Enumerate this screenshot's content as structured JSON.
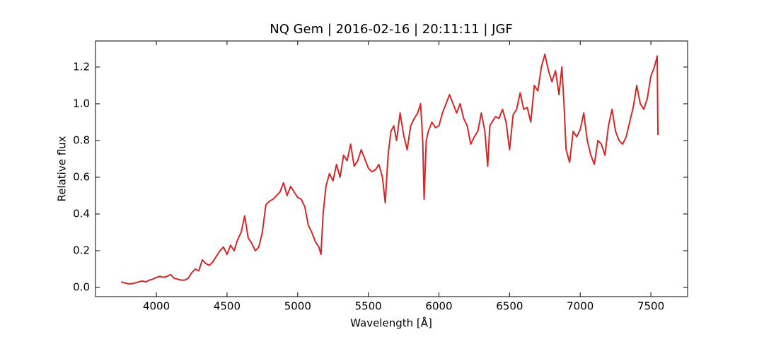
{
  "chart_data": {
    "type": "line",
    "title": "NQ Gem | 2016-02-16 | 20:11:11 | JGF",
    "x_label": "Wavelength [Å]",
    "y_label": "Relative flux",
    "xlim": [
      3569,
      7760
    ],
    "ylim": [
      -0.05,
      1.342
    ],
    "xticks": [
      4000,
      4500,
      5000,
      5500,
      6000,
      6500,
      7000,
      7500
    ],
    "yticks": [
      {
        "value": 0,
        "label": "0.0"
      },
      {
        "value": 0.2,
        "label": "0.2"
      },
      {
        "value": 0.4,
        "label": "0.4"
      },
      {
        "value": 0.6,
        "label": "0.6"
      },
      {
        "value": 0.8,
        "label": "0.8"
      },
      {
        "value": 1,
        "label": "1.0"
      },
      {
        "value": 1.2,
        "label": "1.2"
      }
    ],
    "x": [
      3750,
      3775,
      3800,
      3825,
      3850,
      3875,
      3900,
      3925,
      3950,
      3975,
      4000,
      4025,
      4050,
      4075,
      4100,
      4125,
      4150,
      4175,
      4200,
      4225,
      4250,
      4275,
      4300,
      4325,
      4350,
      4375,
      4400,
      4425,
      4450,
      4475,
      4500,
      4525,
      4550,
      4575,
      4600,
      4625,
      4650,
      4675,
      4700,
      4725,
      4750,
      4775,
      4800,
      4825,
      4850,
      4875,
      4900,
      4925,
      4950,
      4975,
      5000,
      5025,
      5050,
      5075,
      5100,
      5125,
      5150,
      5165,
      5180,
      5200,
      5225,
      5250,
      5275,
      5300,
      5325,
      5350,
      5375,
      5400,
      5425,
      5450,
      5475,
      5500,
      5525,
      5550,
      5575,
      5600,
      5620,
      5640,
      5660,
      5680,
      5700,
      5725,
      5750,
      5775,
      5800,
      5825,
      5850,
      5870,
      5885,
      5895,
      5910,
      5925,
      5950,
      5975,
      6000,
      6025,
      6050,
      6075,
      6100,
      6125,
      6150,
      6175,
      6200,
      6225,
      6250,
      6275,
      6300,
      6325,
      6345,
      6360,
      6400,
      6425,
      6450,
      6475,
      6500,
      6525,
      6550,
      6575,
      6600,
      6625,
      6650,
      6675,
      6700,
      6725,
      6750,
      6775,
      6800,
      6825,
      6850,
      6870,
      6885,
      6900,
      6925,
      6950,
      6975,
      7000,
      7025,
      7050,
      7075,
      7100,
      7125,
      7150,
      7175,
      7200,
      7225,
      7250,
      7275,
      7300,
      7325,
      7350,
      7375,
      7400,
      7425,
      7450,
      7475,
      7500,
      7525,
      7545,
      7550
    ],
    "series": [
      {
        "name": "NQ Gem",
        "color": "#d62728",
        "values": [
          0.03,
          0.025,
          0.02,
          0.02,
          0.025,
          0.03,
          0.035,
          0.03,
          0.04,
          0.045,
          0.055,
          0.06,
          0.055,
          0.06,
          0.07,
          0.05,
          0.045,
          0.04,
          0.04,
          0.05,
          0.08,
          0.1,
          0.09,
          0.15,
          0.13,
          0.12,
          0.14,
          0.17,
          0.2,
          0.22,
          0.18,
          0.23,
          0.2,
          0.26,
          0.3,
          0.39,
          0.27,
          0.24,
          0.2,
          0.22,
          0.3,
          0.45,
          0.47,
          0.48,
          0.5,
          0.52,
          0.57,
          0.5,
          0.55,
          0.52,
          0.49,
          0.48,
          0.44,
          0.34,
          0.3,
          0.25,
          0.22,
          0.18,
          0.4,
          0.55,
          0.62,
          0.58,
          0.67,
          0.6,
          0.72,
          0.69,
          0.78,
          0.66,
          0.69,
          0.75,
          0.7,
          0.65,
          0.63,
          0.64,
          0.67,
          0.6,
          0.46,
          0.72,
          0.85,
          0.88,
          0.8,
          0.95,
          0.83,
          0.75,
          0.88,
          0.92,
          0.95,
          1.0,
          0.8,
          0.48,
          0.8,
          0.85,
          0.9,
          0.87,
          0.88,
          0.95,
          1.0,
          1.05,
          1.0,
          0.95,
          1.0,
          0.92,
          0.88,
          0.78,
          0.82,
          0.85,
          0.95,
          0.85,
          0.66,
          0.88,
          0.93,
          0.92,
          0.97,
          0.9,
          0.75,
          0.94,
          0.97,
          1.06,
          0.97,
          0.98,
          0.9,
          1.1,
          1.07,
          1.2,
          1.27,
          1.18,
          1.12,
          1.18,
          1.05,
          1.2,
          1.0,
          0.75,
          0.68,
          0.85,
          0.82,
          0.86,
          0.95,
          0.8,
          0.72,
          0.67,
          0.8,
          0.78,
          0.72,
          0.88,
          0.97,
          0.85,
          0.8,
          0.78,
          0.82,
          0.9,
          0.98,
          1.1,
          1.0,
          0.97,
          1.03,
          1.15,
          1.2,
          1.26,
          0.83
        ]
      }
    ]
  }
}
